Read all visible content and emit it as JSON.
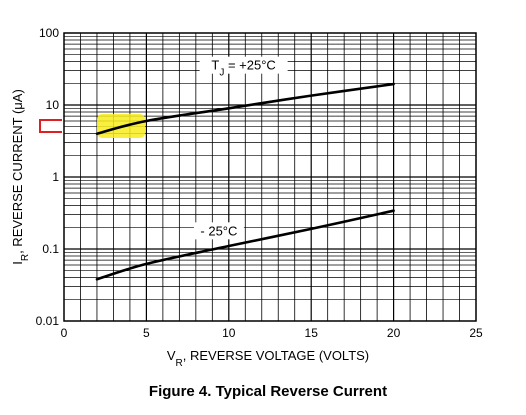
{
  "chart_data": {
    "type": "line",
    "title": "Figure 4. Typical Reverse Current",
    "xlabel": {
      "main": "V",
      "sub": "R",
      "rest": ", REVERSE VOLTAGE (VOLTS)"
    },
    "ylabel": {
      "main": "I",
      "sub": "R",
      "rest": ", REVERSE CURRENT (μA)"
    },
    "x_scale": "linear",
    "y_scale": "log",
    "xlim": [
      0,
      25
    ],
    "ylim": [
      0.01,
      100
    ],
    "x_ticks": [
      "0",
      "5",
      "10",
      "15",
      "20",
      "25"
    ],
    "y_ticks": [
      "0.01",
      "0.1",
      "1",
      "10",
      "100"
    ],
    "grid": true,
    "series": [
      {
        "label_parts": {
          "main": "T",
          "sub": "J",
          "rest": " = +25°C"
        },
        "x": [
          2,
          5,
          10,
          15,
          20
        ],
        "y": [
          4,
          6,
          9,
          13.5,
          19.5
        ]
      },
      {
        "label_parts": {
          "main": "- 25°C",
          "sub": "",
          "rest": ""
        },
        "x": [
          2,
          5,
          10,
          15,
          20
        ],
        "y": [
          0.038,
          0.062,
          0.11,
          0.19,
          0.34
        ]
      }
    ],
    "highlight_color": "#f7ec1c",
    "marker_color": "#e02020"
  }
}
